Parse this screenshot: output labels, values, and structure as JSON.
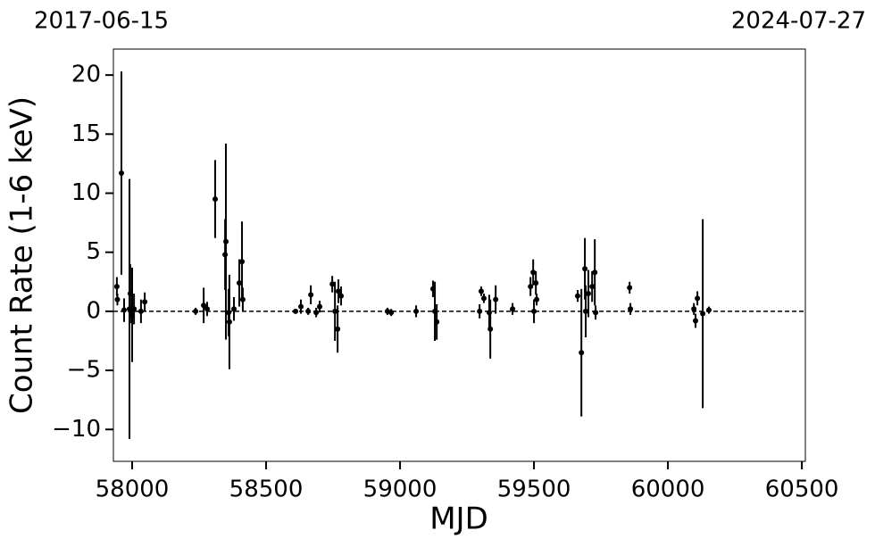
{
  "chart_data": {
    "type": "errorbar",
    "annotations": [
      "2017-06-15",
      "2024-07-27"
    ],
    "x_label": "MJD",
    "y_label": "Count Rate (1-6 keV)",
    "color": "#000000",
    "hline": 0,
    "xlim": [
      57930,
      60513
    ],
    "ylim": [
      -12.7,
      22.2
    ],
    "xticks": [
      58000,
      58500,
      59000,
      59500,
      60000,
      60500
    ],
    "yticks": [
      {
        "value": -10,
        "label": "−10"
      },
      {
        "value": -5,
        "label": "−5"
      },
      0,
      5,
      10,
      15,
      20
    ],
    "x": [
      57943,
      57945,
      57960,
      57970,
      57990,
      57993,
      58000,
      58007,
      58033,
      58047,
      58237,
      58267,
      58280,
      58310,
      58347,
      58350,
      58360,
      58363,
      58380,
      58400,
      58410,
      58413,
      58610,
      58630,
      58657,
      58667,
      58687,
      58700,
      58747,
      58757,
      58767,
      58770,
      58780,
      58953,
      58967,
      59060,
      59123,
      59130,
      59137,
      59297,
      59303,
      59313,
      59333,
      59337,
      59357,
      59420,
      59487,
      59497,
      59500,
      59507,
      59510,
      59663,
      59677,
      59690,
      59693,
      59703,
      59717,
      59727,
      59730,
      59857,
      59860,
      60097,
      60103,
      60110,
      60130,
      60153
    ],
    "values": [
      2.1,
      1.0,
      11.7,
      0.1,
      0.2,
      1.5,
      -0.3,
      0.2,
      0,
      0.8,
      0,
      0.5,
      0.2,
      9.5,
      4.8,
      5.9,
      -0.1,
      -0.9,
      0.2,
      2.4,
      4.2,
      1,
      0,
      0.4,
      0,
      1.4,
      -0.1,
      0.4,
      2.3,
      0,
      -1.5,
      1.7,
      1.3,
      0,
      -0.1,
      0,
      1.9,
      0,
      -0.9,
      0,
      1.7,
      1.1,
      -0.1,
      -1.5,
      1,
      0.2,
      2.1,
      3.3,
      0,
      2.4,
      1,
      1.3,
      -3.5,
      3.6,
      0,
      1.5,
      2.1,
      3.3,
      -0.1,
      2,
      0.2,
      0.2,
      -0.8,
      1.1,
      -0.2,
      0.1
    ],
    "errors": [
      0.8,
      0.5,
      8.6,
      1.0,
      11,
      2.5,
      4,
      1.3,
      1,
      0.8,
      0.3,
      1.5,
      0.6,
      3.3,
      3,
      8.3,
      2,
      4,
      1,
      2,
      3.4,
      1,
      0.2,
      0.6,
      0.3,
      0.8,
      0.4,
      0.5,
      0.7,
      2.5,
      2,
      1,
      0.8,
      0.3,
      0.3,
      0.5,
      0.7,
      2.5,
      1.5,
      0.6,
      0.4,
      0.4,
      1.5,
      2.5,
      1.2,
      0.5,
      0.8,
      1.1,
      1,
      1,
      0.5,
      0.5,
      5.4,
      2.6,
      2.2,
      2,
      1.3,
      2.8,
      0.6,
      0.5,
      0.5,
      0.5,
      0.6,
      0.6,
      8,
      0.3
    ]
  }
}
